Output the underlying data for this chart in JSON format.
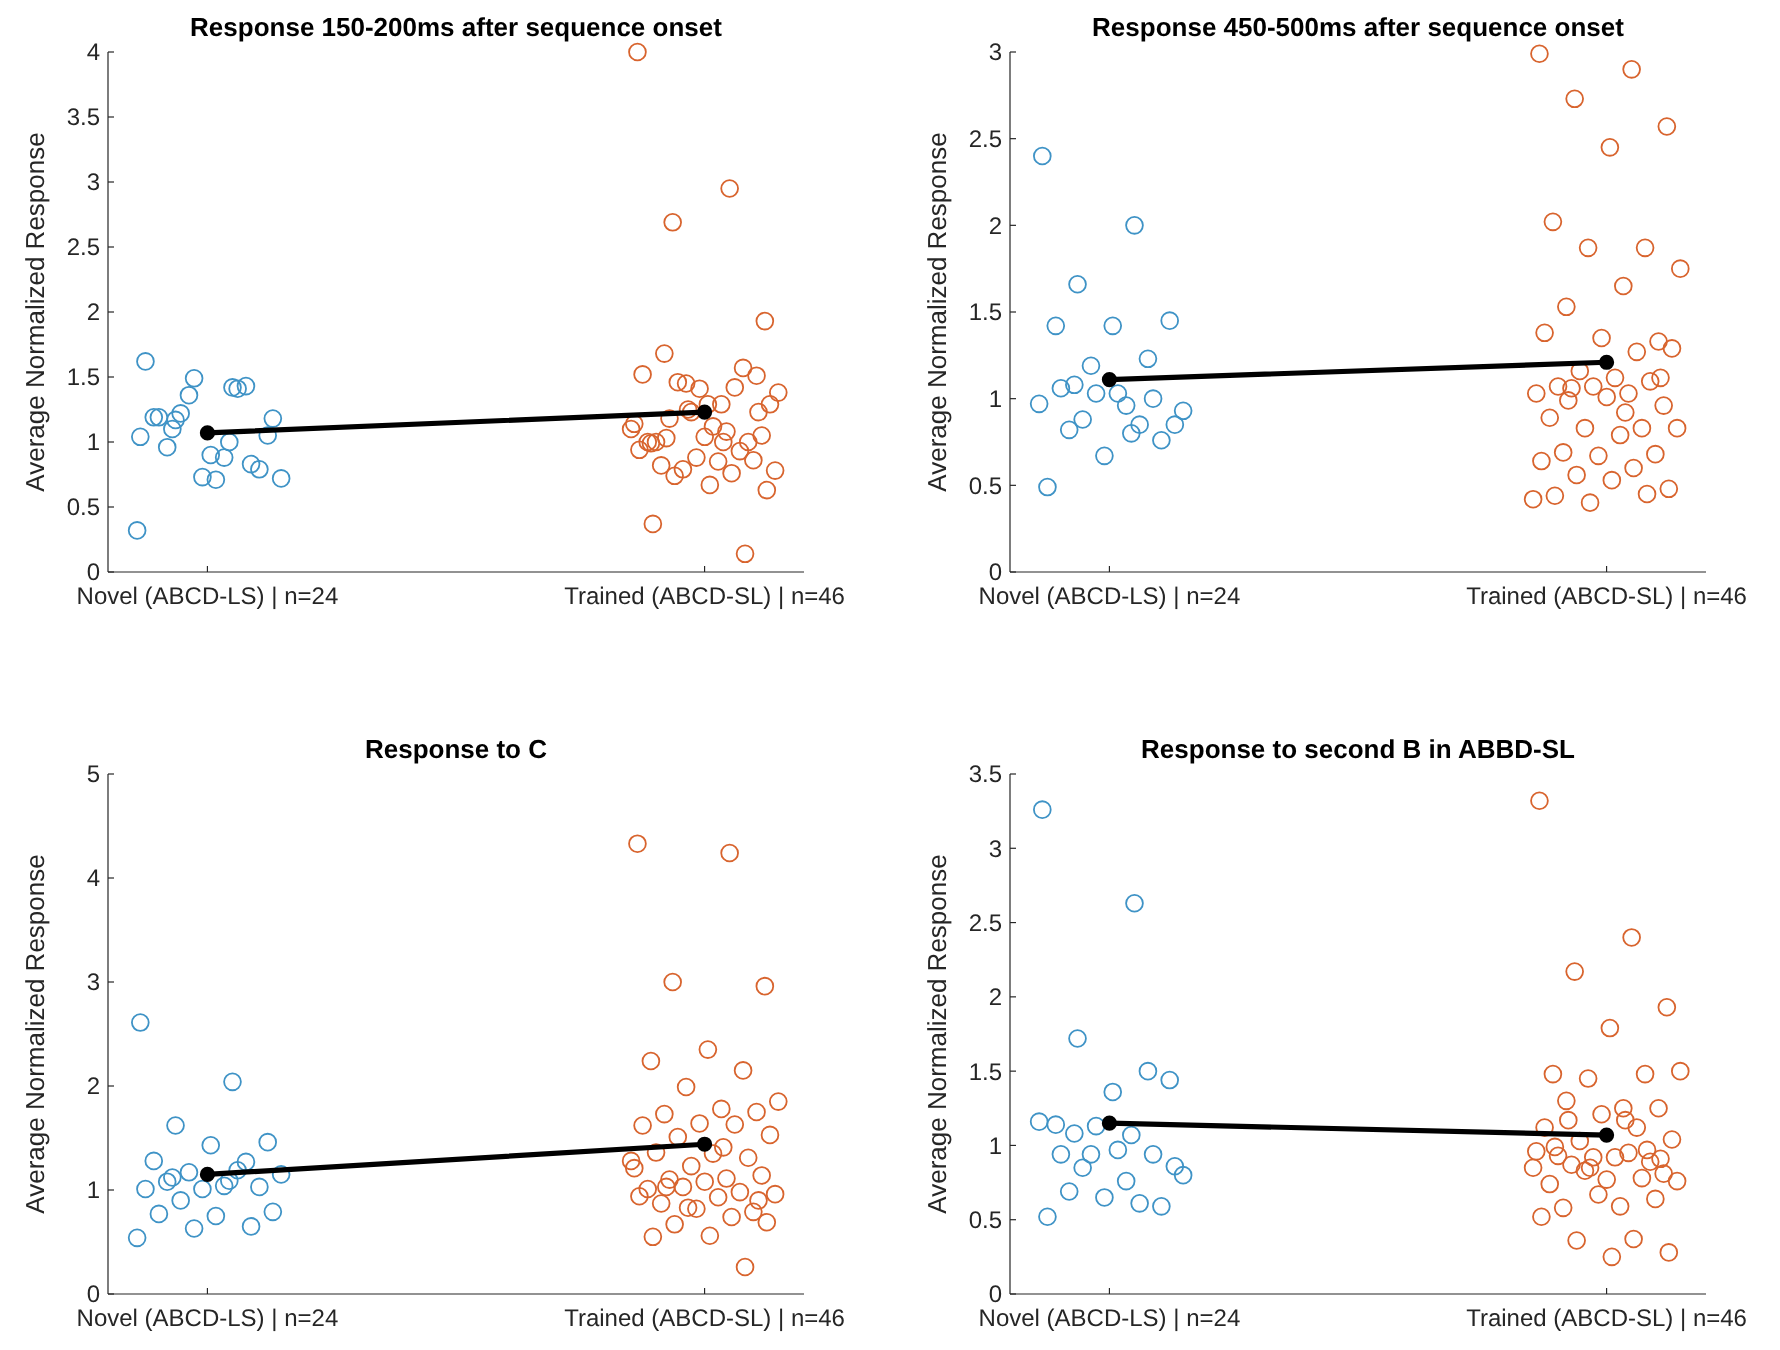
{
  "chart_data": [
    {
      "type": "scatter",
      "title": "Response 150-200ms after sequence onset",
      "ylabel": "Average Normalized Response",
      "categories": [
        "Novel (ABCD-LS) | n=24",
        "Trained (ABCD-SL) | n=46"
      ],
      "ylim": [
        0,
        4
      ],
      "yticks": [
        0,
        0.5,
        1,
        1.5,
        2,
        2.5,
        3,
        3.5,
        4
      ],
      "marker": "circle",
      "series": [
        {
          "color": "#3f93c6",
          "x": [
            "Novel (ABCD-LS) | n=24",
            "Novel (ABCD-LS) | n=24",
            "Novel (ABCD-LS) | n=24",
            "Novel (ABCD-LS) | n=24",
            "Novel (ABCD-LS) | n=24",
            "Novel (ABCD-LS) | n=24",
            "Novel (ABCD-LS) | n=24",
            "Novel (ABCD-LS) | n=24",
            "Novel (ABCD-LS) | n=24",
            "Novel (ABCD-LS) | n=24",
            "Novel (ABCD-LS) | n=24",
            "Novel (ABCD-LS) | n=24",
            "Novel (ABCD-LS) | n=24",
            "Novel (ABCD-LS) | n=24",
            "Novel (ABCD-LS) | n=24",
            "Novel (ABCD-LS) | n=24",
            "Novel (ABCD-LS) | n=24",
            "Novel (ABCD-LS) | n=24",
            "Novel (ABCD-LS) | n=24",
            "Novel (ABCD-LS) | n=24",
            "Novel (ABCD-LS) | n=24",
            "Novel (ABCD-LS) | n=24",
            "Novel (ABCD-LS) | n=24",
            "Novel (ABCD-LS) | n=24"
          ],
          "values": [
            1.04,
            1.42,
            1.17,
            1.05,
            0.9,
            1.19,
            1.43,
            1.36,
            0.72,
            0.88,
            0.96,
            0.79,
            0.73,
            1.62,
            1.41,
            1.22,
            1.18,
            0.71,
            1.19,
            0.83,
            1.49,
            0.32,
            1.0,
            1.1
          ]
        },
        {
          "color": "#d8642e",
          "x": [
            "Trained (ABCD-SL) | n=46",
            "Trained (ABCD-SL) | n=46",
            "Trained (ABCD-SL) | n=46",
            "Trained (ABCD-SL) | n=46",
            "Trained (ABCD-SL) | n=46",
            "Trained (ABCD-SL) | n=46",
            "Trained (ABCD-SL) | n=46",
            "Trained (ABCD-SL) | n=46",
            "Trained (ABCD-SL) | n=46",
            "Trained (ABCD-SL) | n=46",
            "Trained (ABCD-SL) | n=46",
            "Trained (ABCD-SL) | n=46",
            "Trained (ABCD-SL) | n=46",
            "Trained (ABCD-SL) | n=46",
            "Trained (ABCD-SL) | n=46",
            "Trained (ABCD-SL) | n=46",
            "Trained (ABCD-SL) | n=46",
            "Trained (ABCD-SL) | n=46",
            "Trained (ABCD-SL) | n=46",
            "Trained (ABCD-SL) | n=46",
            "Trained (ABCD-SL) | n=46",
            "Trained (ABCD-SL) | n=46",
            "Trained (ABCD-SL) | n=46",
            "Trained (ABCD-SL) | n=46",
            "Trained (ABCD-SL) | n=46",
            "Trained (ABCD-SL) | n=46",
            "Trained (ABCD-SL) | n=46",
            "Trained (ABCD-SL) | n=46",
            "Trained (ABCD-SL) | n=46",
            "Trained (ABCD-SL) | n=46",
            "Trained (ABCD-SL) | n=46",
            "Trained (ABCD-SL) | n=46",
            "Trained (ABCD-SL) | n=46",
            "Trained (ABCD-SL) | n=46",
            "Trained (ABCD-SL) | n=46",
            "Trained (ABCD-SL) | n=46",
            "Trained (ABCD-SL) | n=46",
            "Trained (ABCD-SL) | n=46",
            "Trained (ABCD-SL) | n=46",
            "Trained (ABCD-SL) | n=46",
            "Trained (ABCD-SL) | n=46",
            "Trained (ABCD-SL) | n=46",
            "Trained (ABCD-SL) | n=46",
            "Trained (ABCD-SL) | n=46",
            "Trained (ABCD-SL) | n=46",
            "Trained (ABCD-SL) | n=46"
          ],
          "values": [
            4.0,
            2.95,
            2.69,
            1.93,
            1.29,
            0.99,
            1.57,
            1.45,
            1.38,
            1.29,
            1.68,
            1.51,
            1.41,
            1.52,
            1.42,
            1.46,
            1.29,
            1.12,
            1.0,
            1.0,
            1.23,
            1.14,
            1.08,
            1.18,
            1.05,
            1.04,
            1.0,
            0.93,
            0.79,
            0.78,
            0.85,
            0.82,
            0.86,
            0.88,
            0.94,
            0.76,
            0.74,
            0.63,
            0.67,
            0.37,
            0.14,
            1.25,
            1.1,
            1.0,
            1.03,
            1.23
          ]
        },
        {
          "type": "line",
          "color": "#000000",
          "x": [
            "Novel (ABCD-LS) | n=24",
            "Trained (ABCD-SL) | n=46"
          ],
          "values": [
            1.07,
            1.23
          ]
        }
      ]
    },
    {
      "type": "scatter",
      "title": "Response 450-500ms after sequence onset",
      "ylabel": "Average Normalized Response",
      "categories": [
        "Novel (ABCD-LS) | n=24",
        "Trained (ABCD-SL) | n=46"
      ],
      "ylim": [
        0,
        3
      ],
      "yticks": [
        0,
        0.5,
        1,
        1.5,
        2,
        2.5,
        3
      ],
      "marker": "circle",
      "series": [
        {
          "color": "#3f93c6",
          "x": [
            "Novel (ABCD-LS) | n=24",
            "Novel (ABCD-LS) | n=24",
            "Novel (ABCD-LS) | n=24",
            "Novel (ABCD-LS) | n=24",
            "Novel (ABCD-LS) | n=24",
            "Novel (ABCD-LS) | n=24",
            "Novel (ABCD-LS) | n=24",
            "Novel (ABCD-LS) | n=24",
            "Novel (ABCD-LS) | n=24",
            "Novel (ABCD-LS) | n=24",
            "Novel (ABCD-LS) | n=24",
            "Novel (ABCD-LS) | n=24",
            "Novel (ABCD-LS) | n=24",
            "Novel (ABCD-LS) | n=24",
            "Novel (ABCD-LS) | n=24",
            "Novel (ABCD-LS) | n=24",
            "Novel (ABCD-LS) | n=24",
            "Novel (ABCD-LS) | n=24",
            "Novel (ABCD-LS) | n=24",
            "Novel (ABCD-LS) | n=24",
            "Novel (ABCD-LS) | n=24",
            "Novel (ABCD-LS) | n=24",
            "Novel (ABCD-LS) | n=24",
            "Novel (ABCD-LS) | n=24"
          ],
          "values": [
            2.4,
            2.0,
            1.66,
            1.45,
            1.42,
            1.42,
            1.23,
            1.19,
            0.93,
            0.96,
            0.82,
            0.76,
            0.67,
            0.49,
            0.85,
            0.88,
            0.85,
            1.03,
            1.06,
            1.0,
            1.03,
            0.97,
            0.8,
            1.08
          ]
        },
        {
          "color": "#d8642e",
          "x": [
            "Trained (ABCD-SL) | n=46",
            "Trained (ABCD-SL) | n=46",
            "Trained (ABCD-SL) | n=46",
            "Trained (ABCD-SL) | n=46",
            "Trained (ABCD-SL) | n=46",
            "Trained (ABCD-SL) | n=46",
            "Trained (ABCD-SL) | n=46",
            "Trained (ABCD-SL) | n=46",
            "Trained (ABCD-SL) | n=46",
            "Trained (ABCD-SL) | n=46",
            "Trained (ABCD-SL) | n=46",
            "Trained (ABCD-SL) | n=46",
            "Trained (ABCD-SL) | n=46",
            "Trained (ABCD-SL) | n=46",
            "Trained (ABCD-SL) | n=46",
            "Trained (ABCD-SL) | n=46",
            "Trained (ABCD-SL) | n=46",
            "Trained (ABCD-SL) | n=46",
            "Trained (ABCD-SL) | n=46",
            "Trained (ABCD-SL) | n=46",
            "Trained (ABCD-SL) | n=46",
            "Trained (ABCD-SL) | n=46",
            "Trained (ABCD-SL) | n=46",
            "Trained (ABCD-SL) | n=46",
            "Trained (ABCD-SL) | n=46",
            "Trained (ABCD-SL) | n=46",
            "Trained (ABCD-SL) | n=46",
            "Trained (ABCD-SL) | n=46",
            "Trained (ABCD-SL) | n=46",
            "Trained (ABCD-SL) | n=46",
            "Trained (ABCD-SL) | n=46",
            "Trained (ABCD-SL) | n=46",
            "Trained (ABCD-SL) | n=46",
            "Trained (ABCD-SL) | n=46",
            "Trained (ABCD-SL) | n=46",
            "Trained (ABCD-SL) | n=46",
            "Trained (ABCD-SL) | n=46",
            "Trained (ABCD-SL) | n=46",
            "Trained (ABCD-SL) | n=46",
            "Trained (ABCD-SL) | n=46",
            "Trained (ABCD-SL) | n=46",
            "Trained (ABCD-SL) | n=46",
            "Trained (ABCD-SL) | n=46",
            "Trained (ABCD-SL) | n=46",
            "Trained (ABCD-SL) | n=46",
            "Trained (ABCD-SL) | n=46"
          ],
          "values": [
            2.99,
            2.9,
            2.73,
            2.57,
            2.45,
            2.02,
            1.87,
            1.87,
            1.75,
            1.65,
            1.53,
            1.33,
            1.35,
            1.38,
            1.27,
            1.16,
            1.29,
            1.12,
            1.07,
            1.1,
            1.07,
            1.03,
            1.03,
            1.06,
            0.96,
            1.01,
            0.89,
            0.83,
            0.83,
            0.83,
            0.79,
            0.69,
            0.68,
            0.67,
            0.64,
            0.6,
            0.56,
            0.48,
            0.53,
            0.44,
            0.45,
            0.4,
            0.42,
            0.92,
            0.99,
            1.12
          ]
        },
        {
          "type": "line",
          "color": "#000000",
          "x": [
            "Novel (ABCD-LS) | n=24",
            "Trained (ABCD-SL) | n=46"
          ],
          "values": [
            1.11,
            1.21
          ]
        }
      ]
    },
    {
      "type": "scatter",
      "title": "Response to C",
      "ylabel": "Average Normalized Response",
      "categories": [
        "Novel (ABCD-LS) | n=24",
        "Trained (ABCD-SL) | n=46"
      ],
      "ylim": [
        0,
        5
      ],
      "yticks": [
        0,
        1,
        2,
        3,
        4,
        5
      ],
      "marker": "circle",
      "series": [
        {
          "color": "#3f93c6",
          "x": [
            "Novel (ABCD-LS) | n=24",
            "Novel (ABCD-LS) | n=24",
            "Novel (ABCD-LS) | n=24",
            "Novel (ABCD-LS) | n=24",
            "Novel (ABCD-LS) | n=24",
            "Novel (ABCD-LS) | n=24",
            "Novel (ABCD-LS) | n=24",
            "Novel (ABCD-LS) | n=24",
            "Novel (ABCD-LS) | n=24",
            "Novel (ABCD-LS) | n=24",
            "Novel (ABCD-LS) | n=24",
            "Novel (ABCD-LS) | n=24",
            "Novel (ABCD-LS) | n=24",
            "Novel (ABCD-LS) | n=24",
            "Novel (ABCD-LS) | n=24",
            "Novel (ABCD-LS) | n=24",
            "Novel (ABCD-LS) | n=24",
            "Novel (ABCD-LS) | n=24",
            "Novel (ABCD-LS) | n=24",
            "Novel (ABCD-LS) | n=24",
            "Novel (ABCD-LS) | n=24",
            "Novel (ABCD-LS) | n=24",
            "Novel (ABCD-LS) | n=24",
            "Novel (ABCD-LS) | n=24"
          ],
          "values": [
            2.61,
            2.04,
            1.62,
            1.46,
            1.43,
            1.28,
            1.27,
            1.17,
            1.15,
            1.04,
            1.08,
            1.03,
            1.01,
            1.01,
            1.19,
            0.9,
            0.79,
            0.75,
            0.77,
            0.65,
            0.63,
            0.54,
            1.09,
            1.12
          ]
        },
        {
          "color": "#d8642e",
          "x": [
            "Trained (ABCD-SL) | n=46",
            "Trained (ABCD-SL) | n=46",
            "Trained (ABCD-SL) | n=46",
            "Trained (ABCD-SL) | n=46",
            "Trained (ABCD-SL) | n=46",
            "Trained (ABCD-SL) | n=46",
            "Trained (ABCD-SL) | n=46",
            "Trained (ABCD-SL) | n=46",
            "Trained (ABCD-SL) | n=46",
            "Trained (ABCD-SL) | n=46",
            "Trained (ABCD-SL) | n=46",
            "Trained (ABCD-SL) | n=46",
            "Trained (ABCD-SL) | n=46",
            "Trained (ABCD-SL) | n=46",
            "Trained (ABCD-SL) | n=46",
            "Trained (ABCD-SL) | n=46",
            "Trained (ABCD-SL) | n=46",
            "Trained (ABCD-SL) | n=46",
            "Trained (ABCD-SL) | n=46",
            "Trained (ABCD-SL) | n=46",
            "Trained (ABCD-SL) | n=46",
            "Trained (ABCD-SL) | n=46",
            "Trained (ABCD-SL) | n=46",
            "Trained (ABCD-SL) | n=46",
            "Trained (ABCD-SL) | n=46",
            "Trained (ABCD-SL) | n=46",
            "Trained (ABCD-SL) | n=46",
            "Trained (ABCD-SL) | n=46",
            "Trained (ABCD-SL) | n=46",
            "Trained (ABCD-SL) | n=46",
            "Trained (ABCD-SL) | n=46",
            "Trained (ABCD-SL) | n=46",
            "Trained (ABCD-SL) | n=46",
            "Trained (ABCD-SL) | n=46",
            "Trained (ABCD-SL) | n=46",
            "Trained (ABCD-SL) | n=46",
            "Trained (ABCD-SL) | n=46",
            "Trained (ABCD-SL) | n=46",
            "Trained (ABCD-SL) | n=46",
            "Trained (ABCD-SL) | n=46",
            "Trained (ABCD-SL) | n=46",
            "Trained (ABCD-SL) | n=46",
            "Trained (ABCD-SL) | n=46",
            "Trained (ABCD-SL) | n=46",
            "Trained (ABCD-SL) | n=46",
            "Trained (ABCD-SL) | n=46"
          ],
          "values": [
            4.33,
            4.24,
            3.0,
            2.96,
            2.35,
            2.24,
            2.15,
            1.99,
            1.85,
            1.78,
            1.73,
            1.75,
            1.64,
            1.62,
            1.63,
            1.51,
            1.53,
            1.35,
            1.36,
            1.31,
            1.23,
            1.21,
            1.11,
            1.1,
            1.14,
            1.08,
            1.01,
            0.98,
            1.03,
            0.96,
            0.93,
            0.87,
            0.79,
            0.82,
            0.94,
            0.74,
            0.67,
            0.69,
            0.56,
            0.55,
            0.26,
            0.83,
            1.28,
            1.41,
            1.03,
            0.9
          ]
        },
        {
          "type": "line",
          "color": "#000000",
          "x": [
            "Novel (ABCD-LS) | n=24",
            "Trained (ABCD-SL) | n=46"
          ],
          "values": [
            1.15,
            1.44
          ]
        }
      ]
    },
    {
      "type": "scatter",
      "title": "Response to second B in ABBD-SL",
      "ylabel": "Average Normalized Response",
      "categories": [
        "Novel (ABCD-LS) | n=24",
        "Trained (ABCD-SL) | n=46"
      ],
      "ylim": [
        0,
        3.5
      ],
      "yticks": [
        0,
        0.5,
        1,
        1.5,
        2,
        2.5,
        3,
        3.5
      ],
      "marker": "circle",
      "series": [
        {
          "color": "#3f93c6",
          "x": [
            "Novel (ABCD-LS) | n=24",
            "Novel (ABCD-LS) | n=24",
            "Novel (ABCD-LS) | n=24",
            "Novel (ABCD-LS) | n=24",
            "Novel (ABCD-LS) | n=24",
            "Novel (ABCD-LS) | n=24",
            "Novel (ABCD-LS) | n=24",
            "Novel (ABCD-LS) | n=24",
            "Novel (ABCD-LS) | n=24",
            "Novel (ABCD-LS) | n=24",
            "Novel (ABCD-LS) | n=24",
            "Novel (ABCD-LS) | n=24",
            "Novel (ABCD-LS) | n=24",
            "Novel (ABCD-LS) | n=24",
            "Novel (ABCD-LS) | n=24",
            "Novel (ABCD-LS) | n=24",
            "Novel (ABCD-LS) | n=24",
            "Novel (ABCD-LS) | n=24",
            "Novel (ABCD-LS) | n=24",
            "Novel (ABCD-LS) | n=24",
            "Novel (ABCD-LS) | n=24",
            "Novel (ABCD-LS) | n=24",
            "Novel (ABCD-LS) | n=24",
            "Novel (ABCD-LS) | n=24"
          ],
          "values": [
            3.26,
            2.63,
            1.72,
            1.44,
            1.36,
            1.14,
            1.5,
            0.94,
            0.8,
            0.76,
            0.69,
            0.59,
            0.65,
            0.52,
            0.61,
            0.85,
            0.86,
            0.97,
            0.94,
            0.94,
            1.13,
            1.16,
            1.07,
            1.08
          ]
        },
        {
          "color": "#d8642e",
          "x": [
            "Trained (ABCD-SL) | n=46",
            "Trained (ABCD-SL) | n=46",
            "Trained (ABCD-SL) | n=46",
            "Trained (ABCD-SL) | n=46",
            "Trained (ABCD-SL) | n=46",
            "Trained (ABCD-SL) | n=46",
            "Trained (ABCD-SL) | n=46",
            "Trained (ABCD-SL) | n=46",
            "Trained (ABCD-SL) | n=46",
            "Trained (ABCD-SL) | n=46",
            "Trained (ABCD-SL) | n=46",
            "Trained (ABCD-SL) | n=46",
            "Trained (ABCD-SL) | n=46",
            "Trained (ABCD-SL) | n=46",
            "Trained (ABCD-SL) | n=46",
            "Trained (ABCD-SL) | n=46",
            "Trained (ABCD-SL) | n=46",
            "Trained (ABCD-SL) | n=46",
            "Trained (ABCD-SL) | n=46",
            "Trained (ABCD-SL) | n=46",
            "Trained (ABCD-SL) | n=46",
            "Trained (ABCD-SL) | n=46",
            "Trained (ABCD-SL) | n=46",
            "Trained (ABCD-SL) | n=46",
            "Trained (ABCD-SL) | n=46",
            "Trained (ABCD-SL) | n=46",
            "Trained (ABCD-SL) | n=46",
            "Trained (ABCD-SL) | n=46",
            "Trained (ABCD-SL) | n=46",
            "Trained (ABCD-SL) | n=46",
            "Trained (ABCD-SL) | n=46",
            "Trained (ABCD-SL) | n=46",
            "Trained (ABCD-SL) | n=46",
            "Trained (ABCD-SL) | n=46",
            "Trained (ABCD-SL) | n=46",
            "Trained (ABCD-SL) | n=46",
            "Trained (ABCD-SL) | n=46",
            "Trained (ABCD-SL) | n=46",
            "Trained (ABCD-SL) | n=46",
            "Trained (ABCD-SL) | n=46",
            "Trained (ABCD-SL) | n=46",
            "Trained (ABCD-SL) | n=46",
            "Trained (ABCD-SL) | n=46",
            "Trained (ABCD-SL) | n=46",
            "Trained (ABCD-SL) | n=46",
            "Trained (ABCD-SL) | n=46"
          ],
          "values": [
            3.32,
            2.4,
            2.17,
            1.93,
            1.79,
            1.48,
            1.48,
            1.45,
            1.5,
            1.25,
            1.3,
            1.25,
            1.21,
            1.12,
            1.12,
            1.03,
            1.04,
            0.92,
            0.93,
            0.89,
            0.92,
            0.96,
            0.95,
            0.87,
            0.81,
            0.77,
            0.74,
            0.78,
            0.83,
            0.76,
            0.59,
            0.58,
            0.64,
            0.67,
            0.52,
            0.37,
            0.36,
            0.28,
            0.25,
            0.99,
            0.97,
            0.85,
            0.85,
            1.17,
            1.17,
            0.91
          ]
        },
        {
          "type": "line",
          "color": "#000000",
          "x": [
            "Novel (ABCD-LS) | n=24",
            "Trained (ABCD-SL) | n=46"
          ],
          "values": [
            1.15,
            1.07
          ]
        }
      ]
    }
  ]
}
